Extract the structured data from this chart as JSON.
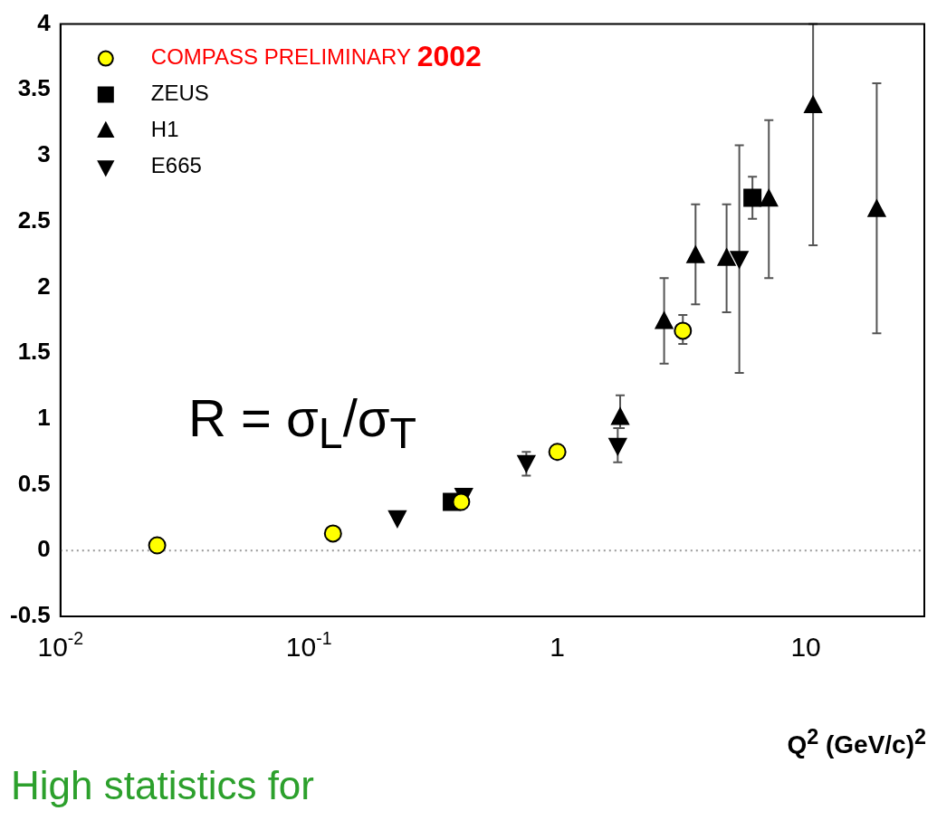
{
  "chart_data": {
    "type": "scatter",
    "xlabel": "Q$^{2}$ (GeV/c)$^{2}$",
    "log": "x",
    "xlim": [
      0.01,
      30
    ],
    "ylim": [
      -0.5,
      4
    ],
    "xticks": [
      {
        "value": 0.01,
        "label": "10$^{-2}$"
      },
      {
        "value": 0.1,
        "label": "10$^{-1}$"
      },
      {
        "value": 1,
        "label": "1"
      },
      {
        "value": 10,
        "label": "10"
      }
    ],
    "yticks": [
      -0.5,
      0,
      0.5,
      1,
      1.5,
      2,
      2.5,
      3,
      3.5,
      4
    ],
    "grid": false,
    "legend": "top left",
    "ref_lines": [
      {
        "axis": "y",
        "value": 0,
        "color": "#999999",
        "line_style": "dotted"
      }
    ],
    "annotations": [
      "R = σ$_{L}$/σ$_{T}$",
      "High statistics for"
    ],
    "series": [
      {
        "name": "COMPASS PRELIMINARY 2002",
        "color": "#ffff00",
        "marker": "circle",
        "x": [
          0.0245,
          0.125,
          0.41,
          1.0,
          3.2
        ],
        "values": [
          0.04,
          0.13,
          0.37,
          0.75,
          1.67
        ],
        "errors": [
          null,
          null,
          null,
          null,
          [
            1.57,
            1.79
          ]
        ]
      },
      {
        "name": "ZEUS",
        "color": "#000000",
        "marker": "square",
        "x": [
          0.376,
          6.1
        ],
        "values": [
          0.37,
          2.68
        ],
        "errors": [
          null,
          [
            2.52,
            2.84
          ]
        ]
      },
      {
        "name": "H1",
        "color": "#000000",
        "marker": "triangle",
        "x": [
          1.79,
          2.69,
          3.6,
          4.8,
          7.1,
          10.7,
          19.3
        ],
        "values": [
          1.01,
          1.74,
          2.24,
          2.22,
          2.67,
          3.38,
          2.59
        ],
        "errors": [
          [
            0.93,
            1.18
          ],
          [
            1.42,
            2.07
          ],
          [
            1.87,
            2.63
          ],
          [
            1.81,
            2.63
          ],
          [
            2.07,
            3.27
          ],
          [
            2.32,
            4.0
          ],
          [
            1.65,
            3.55
          ]
        ]
      },
      {
        "name": "E665",
        "color": "#000000",
        "marker": "triangle-down",
        "x": [
          0.227,
          0.42,
          0.75,
          1.75,
          5.4
        ],
        "values": [
          0.25,
          0.42,
          0.67,
          0.8,
          2.22
        ],
        "errors": [
          null,
          null,
          [
            0.57,
            0.75
          ],
          [
            0.67,
            0.93
          ],
          [
            1.35,
            3.08
          ]
        ]
      }
    ]
  }
}
